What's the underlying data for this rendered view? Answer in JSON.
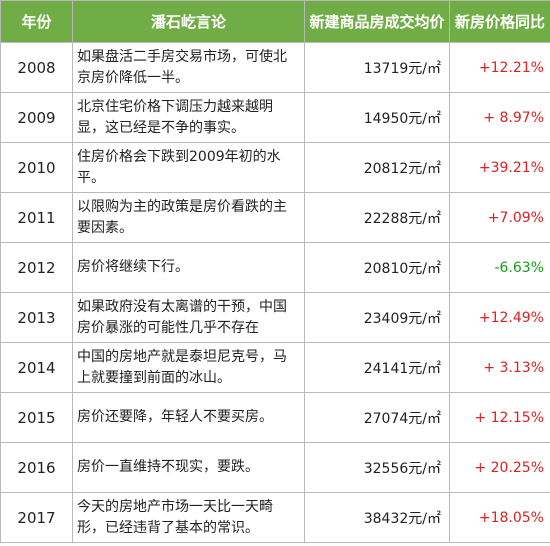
{
  "header": {
    "year": "年份",
    "comment": "潘石屹言论",
    "price": "新建商品房成交均价",
    "change": "新房价格同比"
  },
  "unit": "元/㎡",
  "colors": {
    "header_bg": "#70ad47",
    "increase": "#e02020",
    "decrease": "#13a015"
  },
  "rows": [
    {
      "year": "2008",
      "comment": "如果盘活二手房交易市场，可使北京房价降低一半。",
      "price": "13719元/㎡",
      "change": "+12.21%",
      "direction": "up"
    },
    {
      "year": "2009",
      "comment": "北京住宅价格下调压力越来越明显，这已经是不争的事实。",
      "price": "14950元/㎡",
      "change": "+ 8.97%",
      "direction": "up"
    },
    {
      "year": "2010",
      "comment": "住房价格会下跌到2009年初的水平。",
      "price": "20812元/㎡",
      "change": "+39.21%",
      "direction": "up"
    },
    {
      "year": "2011",
      "comment": "以限购为主的政策是房价看跌的主要因素。",
      "price": "22288元/㎡",
      "change": "+7.09%",
      "direction": "up"
    },
    {
      "year": "2012",
      "comment": "房价将继续下行。",
      "price": "20810元/㎡",
      "change": "-6.63%",
      "direction": "down"
    },
    {
      "year": "2013",
      "comment": "如果政府没有太离谱的干预，中国房价暴涨的可能性几乎不存在",
      "price": "23409元/㎡",
      "change": "+12.49%",
      "direction": "up"
    },
    {
      "year": "2014",
      "comment": "中国的房地产就是泰坦尼克号，马上就要撞到前面的冰山。",
      "price": "24141元/㎡",
      "change": "+ 3.13%",
      "direction": "up"
    },
    {
      "year": "2015",
      "comment": "房价还要降，年轻人不要买房。",
      "price": "27074元/㎡",
      "change": "+ 12.15%",
      "direction": "up"
    },
    {
      "year": "2016",
      "comment": "房价一直维持不现实，要跌。",
      "price": "32556元/㎡",
      "change": "+ 20.25%",
      "direction": "up"
    },
    {
      "year": "2017",
      "comment": "今天的房地产市场一天比一天畸形，已经违背了基本的常识。",
      "price": "38432元/㎡",
      "change": "+18.05%",
      "direction": "up"
    }
  ]
}
